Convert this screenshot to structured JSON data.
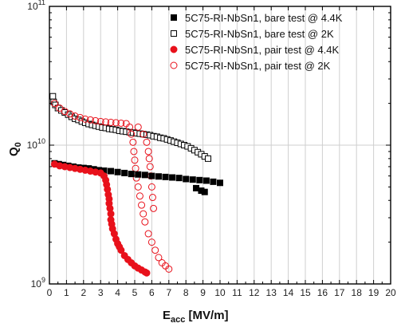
{
  "chart_data": {
    "type": "scatter",
    "xlabel": "E",
    "xlabel_sub": "acc",
    "xlabel_unit": " [MV/m]",
    "ylabel": "Q",
    "ylabel_sub": "0",
    "xlim": [
      0,
      20
    ],
    "ylim": [
      1000000000.0,
      100000000000.0
    ],
    "y_scale": "log",
    "grid": true,
    "legend_position": "top-right",
    "x_ticks": [
      "0",
      "1",
      "2",
      "3",
      "4",
      "5",
      "6",
      "7",
      "8",
      "9",
      "10",
      "11",
      "12",
      "13",
      "14",
      "15",
      "16",
      "17",
      "18",
      "19",
      "20"
    ],
    "y_ticks": [
      {
        "value": 1000000000.0,
        "base": "10",
        "exp": "9"
      },
      {
        "value": 10000000000.0,
        "base": "10",
        "exp": "10"
      },
      {
        "value": 100000000000.0,
        "base": "10",
        "exp": "11"
      }
    ],
    "series": [
      {
        "name": "5C75-RI-NbSn1, bare test @ 4.4K",
        "marker": "square",
        "filled": true,
        "color": "#000000",
        "points": [
          [
            0.3,
            7400000000.0
          ],
          [
            0.55,
            7300000000.0
          ],
          [
            0.8,
            7200000000.0
          ],
          [
            1.1,
            7100000000.0
          ],
          [
            1.4,
            7000000000.0
          ],
          [
            1.7,
            6900000000.0
          ],
          [
            2.0,
            6850000000.0
          ],
          [
            2.3,
            6800000000.0
          ],
          [
            2.6,
            6700000000.0
          ],
          [
            2.9,
            6600000000.0
          ],
          [
            3.2,
            6550000000.0
          ],
          [
            3.6,
            6500000000.0
          ],
          [
            4.0,
            6400000000.0
          ],
          [
            4.4,
            6300000000.0
          ],
          [
            4.8,
            6200000000.0
          ],
          [
            5.2,
            6150000000.0
          ],
          [
            5.6,
            6100000000.0
          ],
          [
            6.0,
            6000000000.0
          ],
          [
            6.4,
            5950000000.0
          ],
          [
            6.8,
            5900000000.0
          ],
          [
            7.2,
            5850000000.0
          ],
          [
            7.6,
            5800000000.0
          ],
          [
            8.0,
            5700000000.0
          ],
          [
            8.4,
            5650000000.0
          ],
          [
            8.8,
            5600000000.0
          ],
          [
            9.2,
            5550000000.0
          ],
          [
            9.6,
            5450000000.0
          ],
          [
            10.0,
            5350000000.0
          ],
          [
            8.6,
            4900000000.0
          ],
          [
            8.9,
            4700000000.0
          ],
          [
            9.1,
            4600000000.0
          ]
        ]
      },
      {
        "name": "5C75-RI-NbSn1, bare test @ 2K",
        "marker": "square",
        "filled": false,
        "color": "#000000",
        "points": [
          [
            0.2,
            22500000000.0
          ],
          [
            0.25,
            20500000000.0
          ],
          [
            0.35,
            19500000000.0
          ],
          [
            0.5,
            18500000000.0
          ],
          [
            0.7,
            17800000000.0
          ],
          [
            0.9,
            17200000000.0
          ],
          [
            1.1,
            16600000000.0
          ],
          [
            1.3,
            16000000000.0
          ],
          [
            1.5,
            15500000000.0
          ],
          [
            1.7,
            15200000000.0
          ],
          [
            1.9,
            14800000000.0
          ],
          [
            2.1,
            14500000000.0
          ],
          [
            2.3,
            14200000000.0
          ],
          [
            2.5,
            14000000000.0
          ],
          [
            2.7,
            13800000000.0
          ],
          [
            2.9,
            13600000000.0
          ],
          [
            3.1,
            13400000000.0
          ],
          [
            3.3,
            13300000000.0
          ],
          [
            3.5,
            13100000000.0
          ],
          [
            3.7,
            13000000000.0
          ],
          [
            3.9,
            12900000000.0
          ],
          [
            4.1,
            12700000000.0
          ],
          [
            4.3,
            12600000000.0
          ],
          [
            4.5,
            12500000000.0
          ],
          [
            4.7,
            12400000000.0
          ],
          [
            4.9,
            12300000000.0
          ],
          [
            5.1,
            12200000000.0
          ],
          [
            5.3,
            12100000000.0
          ],
          [
            5.5,
            12000000000.0
          ],
          [
            5.7,
            11900000000.0
          ],
          [
            5.9,
            11800000000.0
          ],
          [
            6.1,
            11600000000.0
          ],
          [
            6.3,
            11500000000.0
          ],
          [
            6.5,
            11300000000.0
          ],
          [
            6.7,
            11200000000.0
          ],
          [
            6.9,
            11000000000.0
          ],
          [
            7.1,
            10800000000.0
          ],
          [
            7.3,
            10600000000.0
          ],
          [
            7.5,
            10400000000.0
          ],
          [
            7.7,
            10200000000.0
          ],
          [
            7.9,
            10000000000.0
          ],
          [
            8.1,
            9800000000.0
          ],
          [
            8.3,
            9500000000.0
          ],
          [
            8.5,
            9200000000.0
          ],
          [
            8.7,
            8900000000.0
          ],
          [
            8.9,
            8600000000.0
          ],
          [
            9.1,
            8300000000.0
          ],
          [
            9.3,
            8000000000.0
          ]
        ]
      },
      {
        "name": "5C75-RI-NbSn1, pair test @ 4.4K",
        "marker": "circle",
        "filled": true,
        "color": "#e8111b",
        "points": [
          [
            0.3,
            7300000000.0
          ],
          [
            0.6,
            7100000000.0
          ],
          [
            0.9,
            7000000000.0
          ],
          [
            1.2,
            6900000000.0
          ],
          [
            1.5,
            6800000000.0
          ],
          [
            1.8,
            6700000000.0
          ],
          [
            2.1,
            6600000000.0
          ],
          [
            2.4,
            6500000000.0
          ],
          [
            2.7,
            6400000000.0
          ],
          [
            3.0,
            6300000000.0
          ],
          [
            3.2,
            6000000000.0
          ],
          [
            3.3,
            5600000000.0
          ],
          [
            3.35,
            5200000000.0
          ],
          [
            3.4,
            4800000000.0
          ],
          [
            3.45,
            4400000000.0
          ],
          [
            3.5,
            4100000000.0
          ],
          [
            3.5,
            3800000000.0
          ],
          [
            3.55,
            3500000000.0
          ],
          [
            3.6,
            3200000000.0
          ],
          [
            3.6,
            2900000000.0
          ],
          [
            3.65,
            2700000000.0
          ],
          [
            3.7,
            2500000000.0
          ],
          [
            3.8,
            2300000000.0
          ],
          [
            3.9,
            2100000000.0
          ],
          [
            4.0,
            1950000000.0
          ],
          [
            4.1,
            1850000000.0
          ],
          [
            4.2,
            1750000000.0
          ],
          [
            4.4,
            1600000000.0
          ],
          [
            4.6,
            1500000000.0
          ],
          [
            4.8,
            1420000000.0
          ],
          [
            5.0,
            1350000000.0
          ],
          [
            5.2,
            1300000000.0
          ],
          [
            5.4,
            1260000000.0
          ],
          [
            5.6,
            1220000000.0
          ],
          [
            5.7,
            1200000000.0
          ]
        ]
      },
      {
        "name": "5C75-RI-NbSn1, pair test @ 2K",
        "marker": "circle",
        "filled": false,
        "color": "#e8111b",
        "points": [
          [
            0.3,
            20000000000.0
          ],
          [
            0.6,
            18500000000.0
          ],
          [
            0.9,
            17500000000.0
          ],
          [
            1.2,
            16800000000.0
          ],
          [
            1.5,
            16200000000.0
          ],
          [
            1.8,
            15800000000.0
          ],
          [
            2.1,
            15400000000.0
          ],
          [
            2.4,
            15200000000.0
          ],
          [
            2.7,
            15000000000.0
          ],
          [
            3.0,
            14800000000.0
          ],
          [
            3.3,
            14700000000.0
          ],
          [
            3.6,
            14600000000.0
          ],
          [
            3.9,
            14500000000.0
          ],
          [
            4.2,
            14400000000.0
          ],
          [
            4.5,
            14300000000.0
          ],
          [
            4.7,
            13500000000.0
          ],
          [
            4.8,
            12000000000.0
          ],
          [
            4.9,
            10500000000.0
          ],
          [
            4.95,
            9000000000.0
          ],
          [
            5.0,
            7800000000.0
          ],
          [
            5.05,
            6800000000.0
          ],
          [
            5.1,
            5800000000.0
          ],
          [
            5.2,
            5000000000.0
          ],
          [
            5.3,
            4300000000.0
          ],
          [
            5.4,
            3700000000.0
          ],
          [
            5.5,
            3200000000.0
          ],
          [
            5.6,
            2800000000.0
          ],
          [
            5.8,
            2300000000.0
          ],
          [
            6.0,
            2000000000.0
          ],
          [
            6.2,
            1750000000.0
          ],
          [
            6.4,
            1550000000.0
          ],
          [
            6.6,
            1420000000.0
          ],
          [
            6.8,
            1350000000.0
          ],
          [
            7.0,
            1280000000.0
          ],
          [
            5.2,
            13500000000.0
          ],
          [
            5.5,
            12000000000.0
          ],
          [
            5.7,
            10500000000.0
          ],
          [
            5.8,
            9000000000.0
          ],
          [
            5.85,
            8000000000.0
          ],
          [
            5.9,
            7000000000.0
          ],
          [
            5.95,
            6000000000.0
          ],
          [
            6.0,
            5000000000.0
          ],
          [
            6.05,
            4200000000.0
          ],
          [
            6.1,
            3500000000.0
          ]
        ]
      }
    ]
  }
}
